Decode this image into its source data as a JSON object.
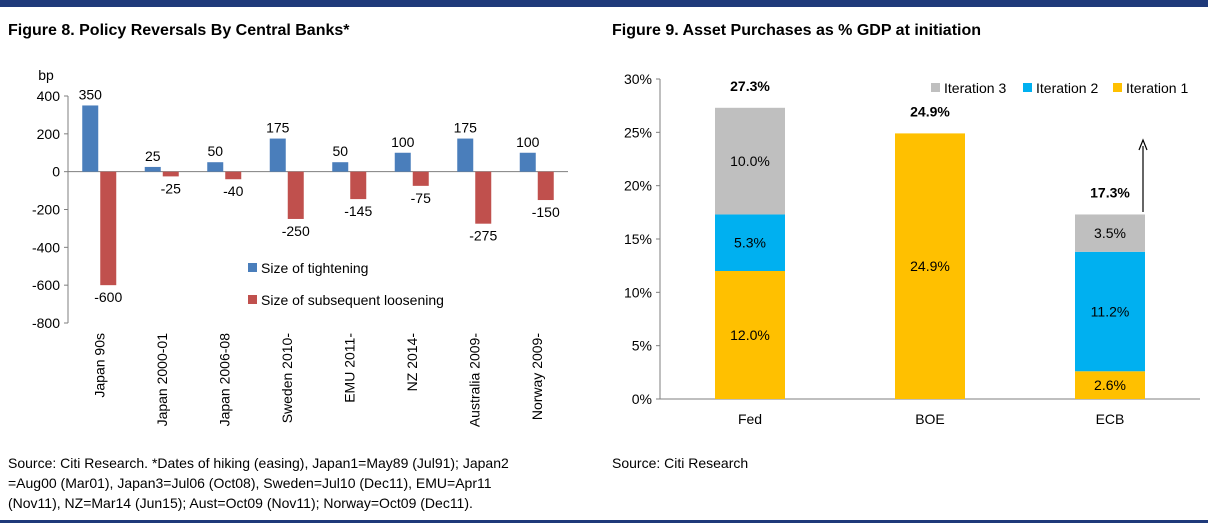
{
  "figure8": {
    "title": "Figure 8. Policy Reversals By Central Banks*",
    "source_lines": [
      "Source: Citi Research. *Dates of hiking (easing), Japan1=May89 (Jul91); Japan2",
      "=Aug00 (Mar01), Japan3=Jul06 (Oct08), Sweden=Jul10 (Dec11), EMU=Apr11",
      "(Nov11), NZ=Mar14 (Jun15); Aust=Oct09 (Nov11); Norway=Oct09 (Dec11)."
    ]
  },
  "figure9": {
    "title": "Figure 9. Asset Purchases as % GDP at initiation",
    "source": "Source: Citi Research"
  },
  "colors": {
    "tightening": "#4a7ebb",
    "loosening": "#c0504d",
    "iteration1": "#ffc000",
    "iteration2": "#00b0f0",
    "iteration3": "#bfbfbf",
    "rule": "#1f3a7a"
  },
  "chart_data": [
    {
      "type": "bar",
      "title": "Figure 8. Policy Reversals By Central Banks*",
      "ylabel": "bp",
      "ylim": [
        -800,
        400
      ],
      "yticks": [
        400,
        200,
        0,
        -200,
        -400,
        -600,
        -800
      ],
      "categories": [
        "Japan 90s",
        "Japan 2000-01",
        "Japan 2006-08",
        "Sweden 2010-",
        "EMU 2011-",
        "NZ 2014-",
        "Australia 2009-",
        "Norway 2009-"
      ],
      "series": [
        {
          "name": "Size of tightening",
          "values": [
            350,
            25,
            50,
            175,
            50,
            100,
            175,
            100
          ]
        },
        {
          "name": "Size of subsequent loosening",
          "values": [
            -600,
            -25,
            -40,
            -250,
            -145,
            -75,
            -275,
            -150
          ]
        }
      ],
      "legend_position": "center-right"
    },
    {
      "type": "bar",
      "stacked": true,
      "title": "Figure 9. Asset Purchases as % GDP at initiation",
      "ylim": [
        0,
        30
      ],
      "yticks": [
        30,
        25,
        20,
        15,
        10,
        5,
        0
      ],
      "categories": [
        "Fed",
        "BOE",
        "ECB"
      ],
      "series": [
        {
          "name": "Iteration 1",
          "values": [
            12.0,
            24.9,
            2.6
          ],
          "labels": [
            "12.0%",
            "24.9%",
            "2.6%"
          ]
        },
        {
          "name": "Iteration 2",
          "values": [
            5.3,
            0,
            11.2
          ],
          "labels": [
            "5.3%",
            "",
            "11.2%"
          ]
        },
        {
          "name": "Iteration 3",
          "values": [
            10.0,
            0,
            3.5
          ],
          "labels": [
            "10.0%",
            "",
            "3.5%"
          ]
        }
      ],
      "totals": [
        "27.3%",
        "24.9%",
        "17.3%"
      ],
      "legend_order": [
        "Iteration 3",
        "Iteration 2",
        "Iteration 1"
      ],
      "legend_position": "top-right",
      "annotation": "upward arrow beside ECB"
    }
  ]
}
